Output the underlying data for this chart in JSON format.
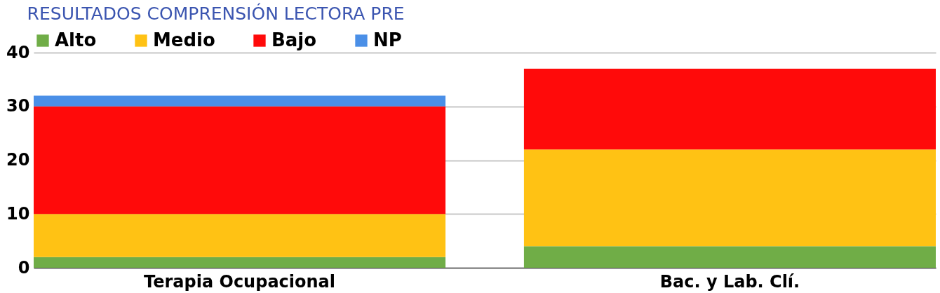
{
  "chart_data": {
    "type": "bar",
    "title": "RESULTADOS COMPRENSIÓN LECTORA PRE",
    "stacked": true,
    "categories": [
      "Terapia Ocupacional",
      "Bac. y Lab. Clí."
    ],
    "series": [
      {
        "name": "Alto",
        "color": "#70ad47",
        "values": [
          2,
          4
        ]
      },
      {
        "name": "Medio",
        "color": "#ffc214",
        "values": [
          8,
          18
        ]
      },
      {
        "name": "Bajo",
        "color": "#ff0a0a",
        "values": [
          20,
          15
        ]
      },
      {
        "name": "NP",
        "color": "#4a8fe7",
        "values": [
          2,
          null
        ]
      }
    ],
    "ylim": [
      0,
      40
    ],
    "yticks": [
      0,
      10,
      20,
      30,
      40
    ],
    "grid": "y",
    "legend": "top"
  }
}
